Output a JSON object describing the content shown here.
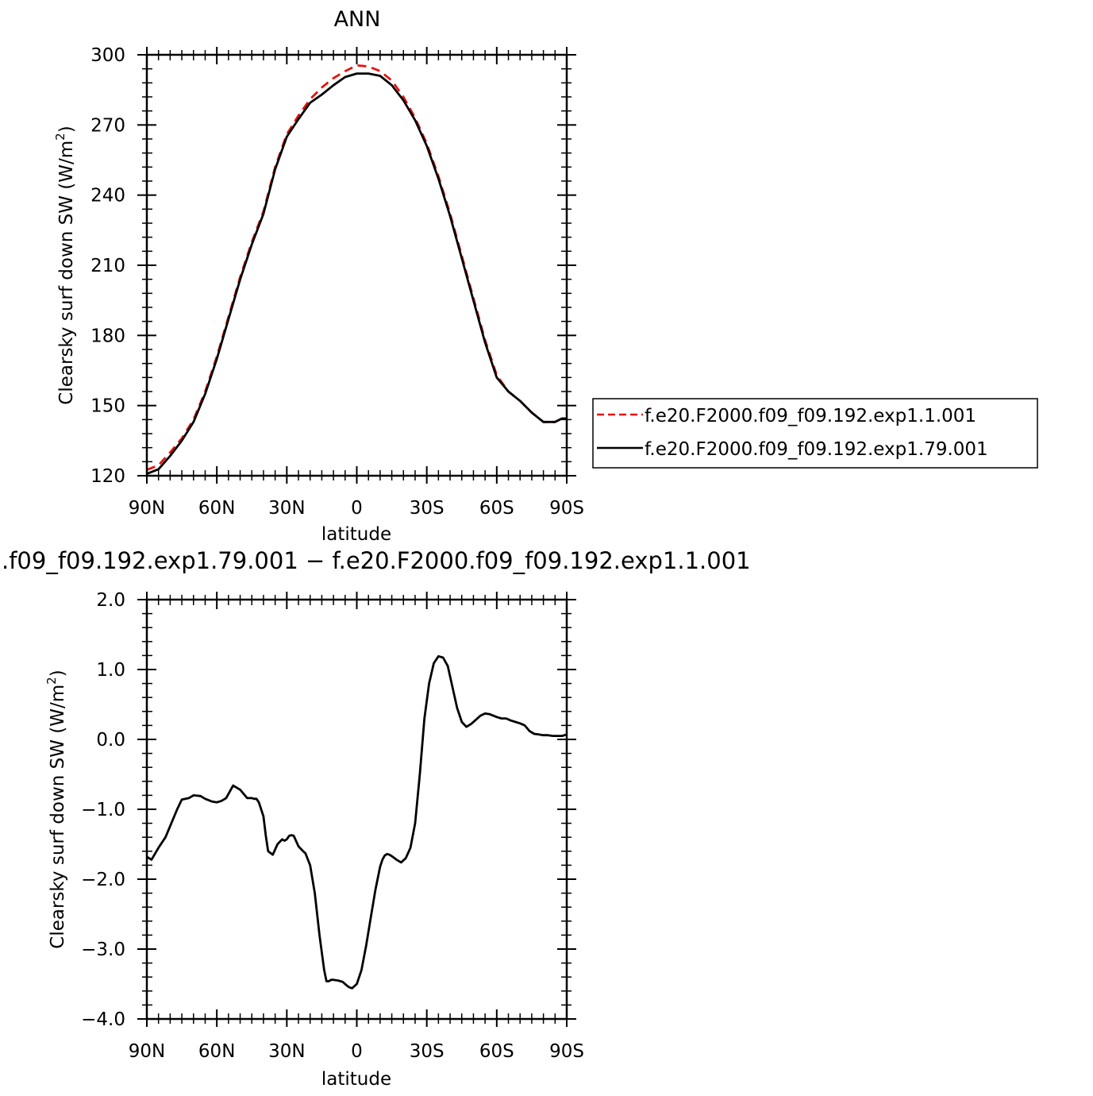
{
  "chart_data": [
    {
      "type": "line",
      "title": "ANN",
      "xlabel": "latitude",
      "ylabel": "Clearsky surf down SW (W/m²)",
      "ylabel_parts": {
        "main": "Clearsky surf down SW (W/m",
        "sup": "2",
        "end": ")"
      },
      "xlim": [
        -90,
        90
      ],
      "ylim": [
        120,
        300
      ],
      "x_ticks": [
        {
          "value": -90,
          "label": "90N"
        },
        {
          "value": -60,
          "label": "60N"
        },
        {
          "value": -30,
          "label": "30N"
        },
        {
          "value": 0,
          "label": "0"
        },
        {
          "value": 30,
          "label": "30S"
        },
        {
          "value": 60,
          "label": "60S"
        },
        {
          "value": 90,
          "label": "90S"
        }
      ],
      "y_ticks": [
        {
          "value": 120,
          "label": "120"
        },
        {
          "value": 150,
          "label": "150"
        },
        {
          "value": 180,
          "label": "180"
        },
        {
          "value": 210,
          "label": "210"
        },
        {
          "value": 240,
          "label": "240"
        },
        {
          "value": 270,
          "label": "270"
        },
        {
          "value": 300,
          "label": "300"
        }
      ],
      "legend_placement": "right",
      "x": [
        -90,
        -85,
        -80,
        -75,
        -70,
        -65,
        -60,
        -55,
        -50,
        -45,
        -40,
        -35,
        -30,
        -25,
        -20,
        -15,
        -10,
        -5,
        0,
        5,
        10,
        15,
        20,
        25,
        30,
        35,
        40,
        45,
        50,
        55,
        60,
        65,
        70,
        75,
        80,
        85,
        88,
        90
      ],
      "series": [
        {
          "name": "f.e20.F2000.f09_f09.192.exp1.1.001",
          "color": "#e8130e",
          "dash": "dashed",
          "values": [
            122.5,
            124.5,
            130,
            136,
            144,
            156,
            171,
            188,
            205,
            220,
            233,
            252,
            266,
            274,
            281,
            286,
            290,
            293,
            295.5,
            295,
            293,
            289,
            282,
            273,
            262,
            248,
            232,
            214,
            196,
            178,
            163,
            156,
            152,
            147,
            143,
            143,
            144.5,
            144.5
          ]
        },
        {
          "name": "f.e20.F2000.f09_f09.192.exp1.79.001",
          "color": "#000000",
          "dash": "solid",
          "values": [
            120.8,
            122.8,
            128.5,
            135,
            143,
            155,
            170,
            187,
            204,
            219,
            232,
            251,
            265,
            272.5,
            279.5,
            283,
            287,
            290.5,
            292,
            292,
            291,
            287,
            280.5,
            272,
            261,
            247,
            231,
            213,
            195,
            177,
            162,
            156,
            152,
            147,
            143,
            143,
            144.5,
            144.5
          ]
        }
      ]
    },
    {
      "type": "line",
      "title": ".f09_f09.192.exp1.79.001 − f.e20.F2000.f09_f09.192.exp1.1.001",
      "xlabel": "latitude",
      "ylabel": "Clearsky surf down SW (W/m²)",
      "ylabel_parts": {
        "main": "Clearsky surf down SW (W/m",
        "sup": "2",
        "end": ")"
      },
      "xlim": [
        -90,
        90
      ],
      "ylim": [
        -4.0,
        2.0
      ],
      "x_ticks": [
        {
          "value": -90,
          "label": "90N"
        },
        {
          "value": -60,
          "label": "60N"
        },
        {
          "value": -30,
          "label": "30N"
        },
        {
          "value": 0,
          "label": "0"
        },
        {
          "value": 30,
          "label": "30S"
        },
        {
          "value": 60,
          "label": "60S"
        },
        {
          "value": 90,
          "label": "90S"
        }
      ],
      "y_ticks": [
        {
          "value": -4.0,
          "label": "−4.0"
        },
        {
          "value": -3.0,
          "label": "−3.0"
        },
        {
          "value": -2.0,
          "label": "−2.0"
        },
        {
          "value": -1.0,
          "label": "−1.0"
        },
        {
          "value": 0.0,
          "label": "0.0"
        },
        {
          "value": 1.0,
          "label": "1.0"
        },
        {
          "value": 2.0,
          "label": "2.0"
        }
      ],
      "x": [
        -90,
        -88,
        -85,
        -82,
        -80,
        -77,
        -75,
        -72,
        -70,
        -67,
        -65,
        -62,
        -60,
        -58,
        -56,
        -53,
        -50,
        -47,
        -45,
        -44,
        -43,
        -42,
        -40,
        -39,
        -38,
        -36,
        -34,
        -32,
        -31,
        -30,
        -29,
        -28,
        -27,
        -25,
        -23,
        -22,
        -20,
        -18,
        -16,
        -14,
        -13,
        -12,
        -11,
        -10,
        -8,
        -6,
        -4,
        -3,
        -2,
        0,
        2,
        4,
        6,
        8,
        10,
        11,
        12,
        13,
        14,
        15,
        17,
        19,
        21,
        23,
        25,
        27,
        29,
        31,
        33,
        35,
        37,
        39,
        41,
        43,
        45,
        47,
        49,
        51,
        53,
        55,
        57,
        60,
        62,
        64,
        66,
        68,
        70,
        72,
        74,
        76,
        78,
        80,
        82,
        84,
        86,
        88,
        90
      ],
      "series": [
        {
          "name": "",
          "color": "#000000",
          "dash": "solid",
          "values": [
            -1.68,
            -1.72,
            -1.55,
            -1.4,
            -1.24,
            -1.0,
            -0.86,
            -0.84,
            -0.8,
            -0.81,
            -0.85,
            -0.89,
            -0.9,
            -0.88,
            -0.84,
            -0.66,
            -0.72,
            -0.84,
            -0.84,
            -0.85,
            -0.85,
            -0.9,
            -1.1,
            -1.38,
            -1.6,
            -1.65,
            -1.5,
            -1.43,
            -1.45,
            -1.43,
            -1.38,
            -1.37,
            -1.38,
            -1.53,
            -1.6,
            -1.63,
            -1.8,
            -2.2,
            -2.8,
            -3.3,
            -3.46,
            -3.46,
            -3.44,
            -3.44,
            -3.45,
            -3.47,
            -3.53,
            -3.55,
            -3.56,
            -3.5,
            -3.3,
            -2.95,
            -2.55,
            -2.15,
            -1.82,
            -1.72,
            -1.66,
            -1.64,
            -1.65,
            -1.67,
            -1.72,
            -1.76,
            -1.7,
            -1.55,
            -1.2,
            -0.5,
            0.3,
            0.8,
            1.09,
            1.19,
            1.17,
            1.05,
            0.75,
            0.45,
            0.25,
            0.18,
            0.22,
            0.28,
            0.34,
            0.37,
            0.36,
            0.32,
            0.3,
            0.3,
            0.27,
            0.25,
            0.23,
            0.2,
            0.12,
            0.08,
            0.07,
            0.06,
            0.06,
            0.05,
            0.05,
            0.05,
            0.07
          ]
        }
      ]
    }
  ]
}
